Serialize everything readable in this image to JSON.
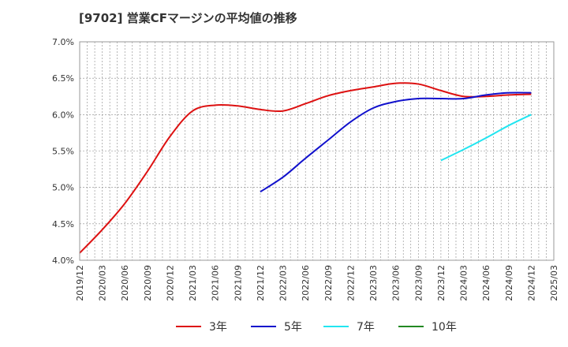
{
  "chart_data": {
    "type": "line",
    "title": "[9702]  営業CFマージンの平均値の推移",
    "xlabel": "",
    "ylabel": "",
    "ylim": [
      4.0,
      7.0
    ],
    "yticks": [
      "4.0%",
      "4.5%",
      "5.0%",
      "5.5%",
      "6.0%",
      "6.5%",
      "7.0%"
    ],
    "xticks": [
      "2019/12",
      "2020/03",
      "2020/06",
      "2020/09",
      "2020/12",
      "2021/03",
      "2021/06",
      "2021/09",
      "2021/12",
      "2022/03",
      "2022/06",
      "2022/09",
      "2022/12",
      "2023/03",
      "2023/06",
      "2023/09",
      "2023/12",
      "2024/03",
      "2024/06",
      "2024/09",
      "2024/12",
      "2025/03"
    ],
    "grid": true,
    "legend_position": "bottom",
    "series": [
      {
        "name": "3年",
        "color": "#dd1111",
        "points": [
          [
            "2019/12",
            4.1
          ],
          [
            "2020/03",
            4.42
          ],
          [
            "2020/06",
            4.78
          ],
          [
            "2020/09",
            5.22
          ],
          [
            "2020/12",
            5.7
          ],
          [
            "2021/03",
            6.05
          ],
          [
            "2021/06",
            6.13
          ],
          [
            "2021/09",
            6.12
          ],
          [
            "2021/12",
            6.07
          ],
          [
            "2022/03",
            6.05
          ],
          [
            "2022/06",
            6.15
          ],
          [
            "2022/09",
            6.26
          ],
          [
            "2022/12",
            6.33
          ],
          [
            "2023/03",
            6.38
          ],
          [
            "2023/06",
            6.43
          ],
          [
            "2023/09",
            6.42
          ],
          [
            "2023/12",
            6.33
          ],
          [
            "2024/03",
            6.25
          ],
          [
            "2024/06",
            6.25
          ],
          [
            "2024/09",
            6.27
          ],
          [
            "2024/12",
            6.28
          ]
        ]
      },
      {
        "name": "5年",
        "color": "#1111cc",
        "points": [
          [
            "2021/12",
            4.94
          ],
          [
            "2022/03",
            5.14
          ],
          [
            "2022/06",
            5.4
          ],
          [
            "2022/09",
            5.65
          ],
          [
            "2022/12",
            5.9
          ],
          [
            "2023/03",
            6.09
          ],
          [
            "2023/06",
            6.18
          ],
          [
            "2023/09",
            6.22
          ],
          [
            "2023/12",
            6.22
          ],
          [
            "2024/03",
            6.22
          ],
          [
            "2024/06",
            6.27
          ],
          [
            "2024/09",
            6.3
          ],
          [
            "2024/12",
            6.3
          ]
        ]
      },
      {
        "name": "7年",
        "color": "#22e5f0",
        "points": [
          [
            "2023/12",
            5.37
          ],
          [
            "2024/03",
            5.52
          ],
          [
            "2024/06",
            5.68
          ],
          [
            "2024/09",
            5.85
          ],
          [
            "2024/12",
            6.0
          ]
        ]
      },
      {
        "name": "10年",
        "color": "#228822",
        "points": []
      }
    ]
  }
}
